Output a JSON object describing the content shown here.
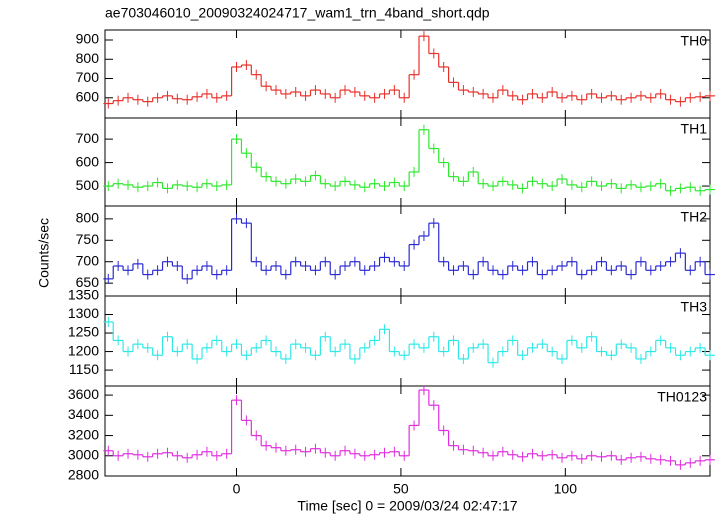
{
  "chart_data": [
    {
      "type": "step",
      "title": "ae703046010_20090324024717_wam1_trn_4band_short.qdp",
      "x": [
        -39,
        -36,
        -33,
        -30,
        -27,
        -24,
        -21,
        -18,
        -15,
        -12,
        -9,
        -6,
        -3,
        0,
        3,
        6,
        9,
        12,
        15,
        18,
        21,
        24,
        27,
        30,
        33,
        36,
        39,
        42,
        45,
        48,
        51,
        54,
        57,
        60,
        63,
        66,
        69,
        72,
        75,
        78,
        81,
        84,
        87,
        90,
        93,
        96,
        99,
        102,
        105,
        108,
        111,
        114,
        117,
        120,
        123,
        126,
        129,
        132,
        135,
        138,
        141,
        144
      ],
      "series": [
        {
          "name": "TH0",
          "color": "#e8302a",
          "values": [
            570,
            585,
            600,
            590,
            580,
            600,
            610,
            595,
            590,
            605,
            620,
            600,
            610,
            760,
            770,
            720,
            660,
            640,
            620,
            630,
            610,
            640,
            620,
            600,
            640,
            630,
            610,
            600,
            620,
            640,
            600,
            720,
            920,
            830,
            760,
            680,
            640,
            630,
            620,
            600,
            640,
            610,
            590,
            620,
            600,
            630,
            600,
            610,
            590,
            620,
            600,
            610,
            590,
            600,
            610,
            600,
            620,
            590,
            580,
            600,
            605,
            610
          ]
        }
      ],
      "xlim": [
        -40,
        144
      ],
      "xticks": [
        0,
        50,
        100
      ],
      "ylim": [
        495,
        952
      ],
      "yticks": [
        600,
        700,
        800,
        900
      ]
    },
    {
      "type": "step",
      "x": [
        -39,
        -36,
        -33,
        -30,
        -27,
        -24,
        -21,
        -18,
        -15,
        -12,
        -9,
        -6,
        -3,
        0,
        3,
        6,
        9,
        12,
        15,
        18,
        21,
        24,
        27,
        30,
        33,
        36,
        39,
        42,
        45,
        48,
        51,
        54,
        57,
        60,
        63,
        66,
        69,
        72,
        75,
        78,
        81,
        84,
        87,
        90,
        93,
        96,
        99,
        102,
        105,
        108,
        111,
        114,
        117,
        120,
        123,
        126,
        129,
        132,
        135,
        138,
        141,
        144
      ],
      "series": [
        {
          "name": "TH1",
          "color": "#2ee82e",
          "values": [
            500,
            510,
            505,
            495,
            500,
            515,
            490,
            505,
            500,
            495,
            510,
            500,
            505,
            700,
            640,
            580,
            540,
            520,
            510,
            530,
            520,
            545,
            510,
            500,
            520,
            505,
            495,
            510,
            500,
            515,
            500,
            560,
            740,
            660,
            600,
            540,
            520,
            560,
            510,
            500,
            520,
            505,
            490,
            520,
            510,
            500,
            530,
            505,
            495,
            520,
            500,
            510,
            490,
            505,
            495,
            500,
            510,
            480,
            490,
            495,
            480,
            485
          ]
        }
      ],
      "xlim": [
        -40,
        144
      ],
      "xticks": [
        0,
        50,
        100
      ],
      "ylim": [
        415,
        790
      ],
      "yticks": [
        500,
        600,
        700
      ]
    },
    {
      "type": "step",
      "ylabel": "Counts/sec",
      "x": [
        -39,
        -36,
        -33,
        -30,
        -27,
        -24,
        -21,
        -18,
        -15,
        -12,
        -9,
        -6,
        -3,
        0,
        3,
        6,
        9,
        12,
        15,
        18,
        21,
        24,
        27,
        30,
        33,
        36,
        39,
        42,
        45,
        48,
        51,
        54,
        57,
        60,
        63,
        66,
        69,
        72,
        75,
        78,
        81,
        84,
        87,
        90,
        93,
        96,
        99,
        102,
        105,
        108,
        111,
        114,
        117,
        120,
        123,
        126,
        129,
        132,
        135,
        138,
        141,
        144
      ],
      "series": [
        {
          "name": "TH2",
          "color": "#2a2ad0",
          "values": [
            660,
            690,
            680,
            695,
            670,
            680,
            700,
            690,
            660,
            680,
            690,
            670,
            680,
            800,
            790,
            700,
            680,
            690,
            670,
            700,
            690,
            680,
            700,
            670,
            690,
            700,
            680,
            690,
            710,
            700,
            690,
            740,
            760,
            790,
            700,
            680,
            690,
            670,
            700,
            680,
            670,
            690,
            680,
            700,
            670,
            680,
            690,
            700,
            670,
            680,
            700,
            680,
            690,
            670,
            700,
            680,
            690,
            700,
            720,
            680,
            700,
            670
          ]
        }
      ],
      "xlim": [
        -40,
        144
      ],
      "xticks": [
        0,
        50,
        100
      ],
      "ylim": [
        620,
        830
      ],
      "yticks": [
        650,
        700,
        750,
        800
      ]
    },
    {
      "type": "step",
      "x": [
        -39,
        -36,
        -33,
        -30,
        -27,
        -24,
        -21,
        -18,
        -15,
        -12,
        -9,
        -6,
        -3,
        0,
        3,
        6,
        9,
        12,
        15,
        18,
        21,
        24,
        27,
        30,
        33,
        36,
        39,
        42,
        45,
        48,
        51,
        54,
        57,
        60,
        63,
        66,
        69,
        72,
        75,
        78,
        81,
        84,
        87,
        90,
        93,
        96,
        99,
        102,
        105,
        108,
        111,
        114,
        117,
        120,
        123,
        126,
        129,
        132,
        135,
        138,
        141,
        144
      ],
      "series": [
        {
          "name": "TH3",
          "color": "#2ee8e8",
          "values": [
            1280,
            1230,
            1200,
            1220,
            1210,
            1190,
            1240,
            1200,
            1220,
            1180,
            1210,
            1230,
            1200,
            1220,
            1190,
            1210,
            1230,
            1200,
            1180,
            1220,
            1210,
            1190,
            1240,
            1200,
            1220,
            1180,
            1210,
            1230,
            1260,
            1200,
            1190,
            1220,
            1210,
            1240,
            1200,
            1230,
            1180,
            1210,
            1220,
            1170,
            1200,
            1230,
            1190,
            1210,
            1220,
            1200,
            1180,
            1230,
            1210,
            1240,
            1200,
            1190,
            1220,
            1210,
            1180,
            1200,
            1230,
            1210,
            1190,
            1200,
            1210,
            1190
          ]
        }
      ],
      "xlim": [
        -40,
        144
      ],
      "xticks": [
        0,
        50,
        100
      ],
      "ylim": [
        1107,
        1350
      ],
      "yticks": [
        1150,
        1200,
        1250,
        1300,
        1350
      ]
    },
    {
      "type": "step",
      "xlabel": "Time [sec] 0 = 2009/03/24 02:47:17",
      "x": [
        -39,
        -36,
        -33,
        -30,
        -27,
        -24,
        -21,
        -18,
        -15,
        -12,
        -9,
        -6,
        -3,
        0,
        3,
        6,
        9,
        12,
        15,
        18,
        21,
        24,
        27,
        30,
        33,
        36,
        39,
        42,
        45,
        48,
        51,
        54,
        57,
        60,
        63,
        66,
        69,
        72,
        75,
        78,
        81,
        84,
        87,
        90,
        93,
        96,
        99,
        102,
        105,
        108,
        111,
        114,
        117,
        120,
        123,
        126,
        129,
        132,
        135,
        138,
        141,
        144
      ],
      "series": [
        {
          "name": "TH0123",
          "color": "#e02ee0",
          "values": [
            3050,
            3000,
            3020,
            3010,
            2990,
            3020,
            3030,
            3000,
            2980,
            3010,
            3040,
            3000,
            3020,
            3550,
            3350,
            3200,
            3100,
            3080,
            3050,
            3060,
            3040,
            3070,
            3030,
            3000,
            3050,
            3020,
            3000,
            3010,
            3030,
            3040,
            3000,
            3300,
            3650,
            3500,
            3250,
            3100,
            3060,
            3050,
            3030,
            3000,
            3040,
            3010,
            2990,
            3020,
            3000,
            3010,
            2980,
            3000,
            2970,
            3000,
            2990,
            3000,
            2960,
            2980,
            2990,
            2970,
            2960,
            2950,
            2910,
            2930,
            2950,
            2960
          ]
        }
      ],
      "xlim": [
        -40,
        144
      ],
      "xticks": [
        0,
        50,
        100
      ],
      "ylim": [
        2800,
        3690
      ],
      "yticks": [
        2800,
        3000,
        3200,
        3400,
        3600
      ]
    }
  ]
}
